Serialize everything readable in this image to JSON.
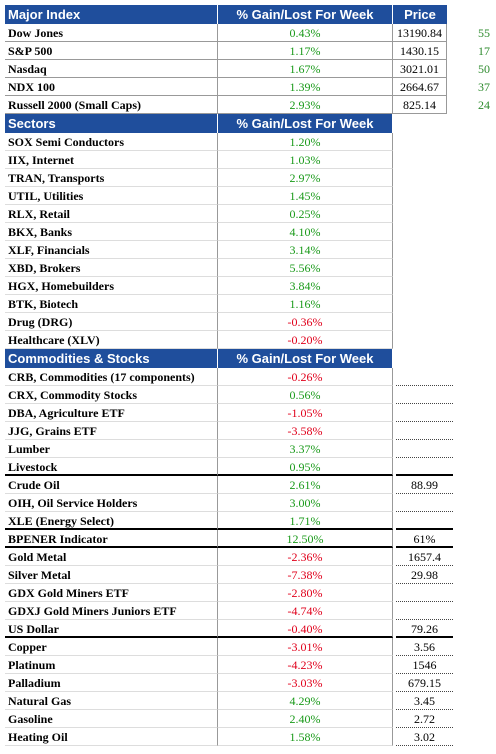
{
  "sections": [
    {
      "header": {
        "name": "Major Index",
        "pct": "% Gain/Lost For Week",
        "price": "Price"
      },
      "groups": [
        [
          {
            "name": "Dow Jones",
            "pct": "0.43%",
            "price": "13190.84",
            "extra": "55"
          },
          {
            "name": "S&P 500",
            "pct": "1.17%",
            "price": "1430.15",
            "extra": "17"
          },
          {
            "name": "Nasdaq",
            "pct": "1.67%",
            "price": "3021.01",
            "extra": "50"
          },
          {
            "name": "NDX 100",
            "pct": "1.39%",
            "price": "2664.67",
            "extra": "37"
          },
          {
            "name": "Russell 2000 (Small Caps)",
            "pct": "2.93%",
            "price": "825.14",
            "extra": "24"
          }
        ]
      ]
    },
    {
      "header": {
        "name": "Sectors",
        "pct": "% Gain/Lost For Week"
      },
      "groups": [
        [
          {
            "name": "SOX Semi Conductors",
            "pct": "1.20%"
          },
          {
            "name": "IIX, Internet",
            "pct": "1.03%"
          },
          {
            "name": "TRAN, Transports",
            "pct": "2.97%"
          },
          {
            "name": "UTIL, Utilities",
            "pct": "1.45%"
          },
          {
            "name": "RLX, Retail",
            "pct": "0.25%"
          },
          {
            "name": "BKX, Banks",
            "pct": "4.10%"
          },
          {
            "name": "XLF, Financials",
            "pct": "3.14%"
          },
          {
            "name": "XBD, Brokers",
            "pct": "5.56%"
          },
          {
            "name": "HGX, Homebuilders",
            "pct": "3.84%"
          },
          {
            "name": "BTK, Biotech",
            "pct": "1.16%"
          },
          {
            "name": "Drug (DRG)",
            "pct": "-0.36%"
          },
          {
            "name": "Healthcare (XLV)",
            "pct": "-0.20%"
          }
        ]
      ]
    },
    {
      "header": {
        "name": "Commodities & Stocks",
        "pct": "% Gain/Lost For Week"
      },
      "groups": [
        [
          {
            "name": "CRB, Commodities (17 components)",
            "pct": "-0.26%"
          },
          {
            "name": "CRX, Commodity Stocks",
            "pct": "0.56%"
          },
          {
            "name": "DBA, Agriculture ETF",
            "pct": "-1.05%"
          },
          {
            "name": "JJG, Grains ETF",
            "pct": "-3.58%"
          },
          {
            "name": "Lumber",
            "pct": "3.37%"
          },
          {
            "name": "Livestock",
            "pct": "0.95%"
          }
        ],
        [
          {
            "name": "Crude Oil",
            "pct": "2.61%",
            "price": "88.99"
          },
          {
            "name": "OIH, Oil Service Holders",
            "pct": "3.00%"
          },
          {
            "name": "XLE (Energy Select)",
            "pct": "1.71%"
          }
        ],
        [
          {
            "name": "BPENER Indicator",
            "pct": "12.50%",
            "price": "61%"
          }
        ],
        [
          {
            "name": "Gold Metal",
            "pct": "-2.36%",
            "price": "1657.4"
          },
          {
            "name": "Silver Metal",
            "pct": "-7.38%",
            "price": "29.98"
          },
          {
            "name": "GDX Gold Miners ETF",
            "pct": "-2.80%"
          },
          {
            "name": "GDXJ Gold Miners Juniors ETF",
            "pct": "-4.74%"
          },
          {
            "name": "US Dollar",
            "pct": "-0.40%",
            "price": "79.26"
          }
        ],
        [
          {
            "name": "Copper",
            "pct": "-3.01%",
            "price": "3.56"
          },
          {
            "name": "Platinum",
            "pct": "-4.23%",
            "price": "1546"
          },
          {
            "name": "Palladium",
            "pct": "-3.03%",
            "price": "679.15"
          },
          {
            "name": "Natural Gas",
            "pct": "4.29%",
            "price": "3.45"
          },
          {
            "name": "Gasoline",
            "pct": "2.40%",
            "price": "2.72"
          },
          {
            "name": "Heating Oil",
            "pct": "1.58%",
            "price": "3.02"
          }
        ]
      ]
    }
  ]
}
